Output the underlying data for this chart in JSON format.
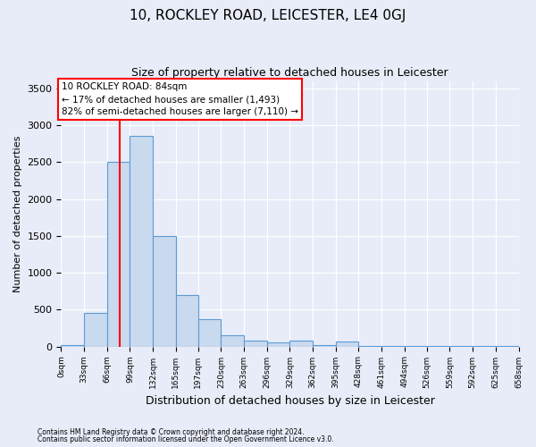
{
  "title1": "10, ROCKLEY ROAD, LEICESTER, LE4 0GJ",
  "title2": "Size of property relative to detached houses in Leicester",
  "xlabel": "Distribution of detached houses by size in Leicester",
  "ylabel": "Number of detached properties",
  "bar_edges": [
    0,
    33,
    66,
    99,
    132,
    165,
    197,
    230,
    263,
    296,
    329,
    362,
    395,
    428,
    461,
    494,
    526,
    559,
    592,
    625,
    658
  ],
  "bar_heights": [
    20,
    450,
    2500,
    2850,
    1500,
    700,
    375,
    150,
    75,
    50,
    80,
    25,
    65,
    10,
    12,
    5,
    4,
    3,
    2,
    2
  ],
  "bar_color": "#c9d9ee",
  "bar_edgecolor": "#5b9bd5",
  "red_line_x": 84,
  "ylim": [
    0,
    3600
  ],
  "yticks": [
    0,
    500,
    1000,
    1500,
    2000,
    2500,
    3000,
    3500
  ],
  "annotation_line1": "10 ROCKLEY ROAD: 84sqm",
  "annotation_line2": "← 17% of detached houses are smaller (1,493)",
  "annotation_line3": "82% of semi-detached houses are larger (7,110) →",
  "footnote1": "Contains HM Land Registry data © Crown copyright and database right 2024.",
  "footnote2": "Contains public sector information licensed under the Open Government Licence v3.0.",
  "background_color": "#e8ecf8",
  "plot_background": "#e8ecf8",
  "grid_color": "#ffffff",
  "title1_fontsize": 11,
  "title2_fontsize": 9,
  "ylabel_fontsize": 8,
  "xlabel_fontsize": 9
}
